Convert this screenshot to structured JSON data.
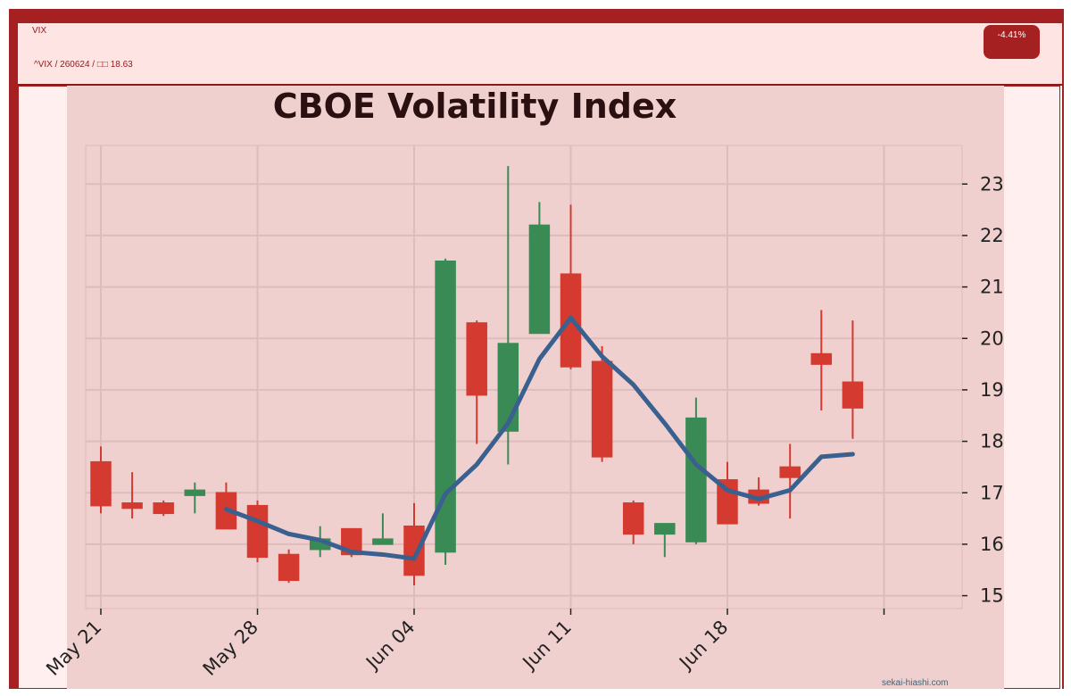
{
  "header": {
    "ticker": "VIX",
    "subline": "^VIX / 260624 / □□ 18.63",
    "change_badge": "-4.41%"
  },
  "watermark": "sekai-hiashi.com",
  "colors": {
    "frame": "#a52020",
    "up": "#3a8a55",
    "down": "#d43a30",
    "ma_line": "#3a6090",
    "plot_bg": "#f0d0ce"
  },
  "chart_data": {
    "type": "candlestick",
    "title": "CBOE Volatility Index",
    "xlabel": "",
    "ylabel": "",
    "ylim": [
      14.75,
      23.75
    ],
    "yticks": [
      15,
      16,
      17,
      18,
      19,
      20,
      21,
      22,
      23
    ],
    "xticks": [
      {
        "label": "May 21",
        "index": 0
      },
      {
        "label": "May 28",
        "index": 5
      },
      {
        "label": "Jun 04",
        "index": 10
      },
      {
        "label": "Jun 11",
        "index": 15
      },
      {
        "label": "Jun 18",
        "index": 20
      },
      {
        "label": "",
        "index": 25
      }
    ],
    "grid": true,
    "y_axis_side": "right",
    "candles": [
      {
        "open": 17.6,
        "high": 17.9,
        "low": 16.6,
        "close": 16.75
      },
      {
        "open": 16.8,
        "high": 17.4,
        "low": 16.5,
        "close": 16.7
      },
      {
        "open": 16.8,
        "high": 16.85,
        "low": 16.55,
        "close": 16.6
      },
      {
        "open": 16.95,
        "high": 17.2,
        "low": 16.6,
        "close": 17.05
      },
      {
        "open": 17.0,
        "high": 17.2,
        "low": 16.3,
        "close": 16.3
      },
      {
        "open": 16.75,
        "high": 16.85,
        "low": 15.65,
        "close": 15.75
      },
      {
        "open": 15.8,
        "high": 15.9,
        "low": 15.25,
        "close": 15.3
      },
      {
        "open": 15.9,
        "high": 16.35,
        "low": 15.75,
        "close": 16.1
      },
      {
        "open": 16.3,
        "high": 16.3,
        "low": 15.75,
        "close": 15.8
      },
      {
        "open": 16.0,
        "high": 16.6,
        "low": 16.0,
        "close": 16.1
      },
      {
        "open": 16.35,
        "high": 16.8,
        "low": 15.2,
        "close": 15.4
      },
      {
        "open": 15.85,
        "high": 21.55,
        "low": 15.6,
        "close": 21.5
      },
      {
        "open": 20.3,
        "high": 20.35,
        "low": 17.95,
        "close": 18.9
      },
      {
        "open": 18.2,
        "high": 23.35,
        "low": 17.55,
        "close": 19.9
      },
      {
        "open": 20.1,
        "high": 22.65,
        "low": 20.1,
        "close": 22.2
      },
      {
        "open": 21.25,
        "high": 22.6,
        "low": 19.4,
        "close": 19.45
      },
      {
        "open": 19.55,
        "high": 19.85,
        "low": 17.6,
        "close": 17.7
      },
      {
        "open": 16.8,
        "high": 16.85,
        "low": 16.0,
        "close": 16.2
      },
      {
        "open": 16.2,
        "high": 16.4,
        "low": 15.75,
        "close": 16.4
      },
      {
        "open": 16.05,
        "high": 18.85,
        "low": 16.0,
        "close": 18.45
      },
      {
        "open": 17.25,
        "high": 17.6,
        "low": 16.4,
        "close": 16.4
      },
      {
        "open": 17.05,
        "high": 17.3,
        "low": 16.75,
        "close": 16.8
      },
      {
        "open": 17.5,
        "high": 17.95,
        "low": 16.5,
        "close": 17.3
      },
      {
        "open": 19.7,
        "high": 20.55,
        "low": 18.6,
        "close": 19.5
      },
      {
        "open": 19.15,
        "high": 20.35,
        "low": 18.05,
        "close": 18.65
      }
    ],
    "series": [
      {
        "values": [
          null,
          null,
          null,
          null,
          16.68,
          16.45,
          16.2,
          16.08,
          15.85,
          15.8,
          15.72,
          16.98,
          17.55,
          18.35,
          19.6,
          20.4,
          19.65,
          19.1,
          18.35,
          17.55,
          17.05,
          16.88,
          17.05,
          17.7,
          17.75
        ]
      }
    ]
  }
}
